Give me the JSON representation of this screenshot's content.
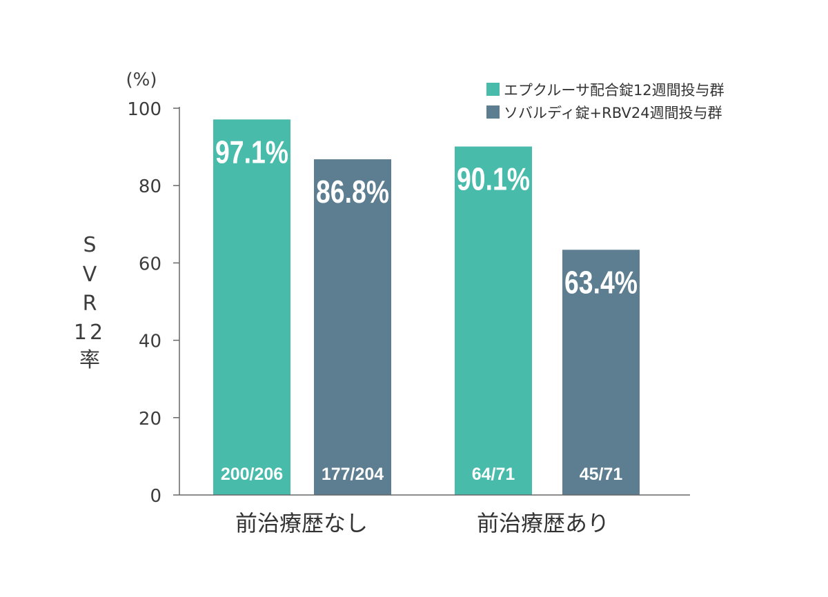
{
  "chart_data": {
    "type": "bar",
    "unit_label": "(%)",
    "ylabel": "SVR12率",
    "ylim": [
      0,
      100
    ],
    "yticks": [
      0,
      20,
      40,
      60,
      80,
      100
    ],
    "categories": [
      "前治療歴なし",
      "前治療歴あり"
    ],
    "series": [
      {
        "name": "エプクルーサ配合錠12週間投与群",
        "color": "#48bbab",
        "values": [
          97.1,
          90.1
        ],
        "value_labels": [
          "97.1%",
          "90.1%"
        ],
        "count_labels": [
          "200/206",
          "64/71"
        ]
      },
      {
        "name": "ソバルディ錠+RBV24週間投与群",
        "color": "#5d7d91",
        "values": [
          86.8,
          63.4
        ],
        "value_labels": [
          "86.8%",
          "63.4%"
        ],
        "count_labels": [
          "177/204",
          "45/71"
        ]
      }
    ],
    "legend_position": "top-right",
    "grid": false
  }
}
